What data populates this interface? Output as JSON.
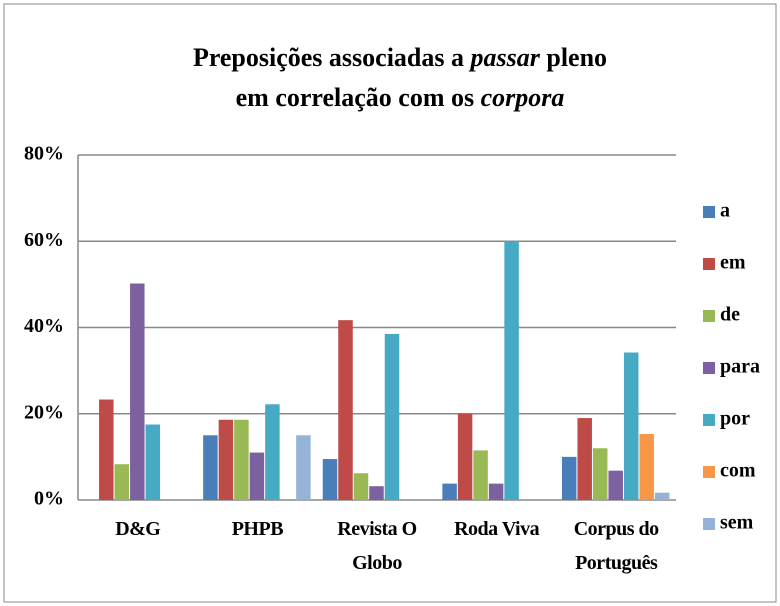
{
  "chart_data": {
    "type": "bar",
    "title": [
      [
        "Preposições associadas a",
        "passar",
        "pleno"
      ],
      [
        "em correlação com os",
        "corpora"
      ]
    ],
    "categories": [
      "D&G",
      "PHPB",
      "Revista O Globo",
      "Roda Viva",
      "Corpus do Português"
    ],
    "series": [
      {
        "name": "a",
        "color": "#4a7ebb",
        "values": [
          0,
          15,
          9.5,
          3.8,
          10
        ]
      },
      {
        "name": "em",
        "color": "#be4b48",
        "values": [
          23.3,
          18.6,
          41.7,
          20,
          19
        ]
      },
      {
        "name": "de",
        "color": "#98b954",
        "values": [
          8.3,
          18.6,
          6.2,
          11.5,
          12
        ]
      },
      {
        "name": "para",
        "color": "#7d60a0",
        "values": [
          50.2,
          11,
          3.2,
          3.8,
          6.8
        ]
      },
      {
        "name": "por",
        "color": "#46aac5",
        "values": [
          17.5,
          22.2,
          38.5,
          60,
          34.2
        ]
      },
      {
        "name": "com",
        "color": "#f79646",
        "values": [
          0,
          0,
          0,
          0,
          15.3
        ]
      },
      {
        "name": "sem",
        "color": "#95b3d7",
        "values": [
          0,
          15,
          0,
          0,
          1.7
        ]
      }
    ],
    "ylim": [
      0,
      80
    ],
    "yticks": [
      {
        "value": 0,
        "label": "0%"
      },
      {
        "value": 20,
        "label": "20%"
      },
      {
        "value": 40,
        "label": "40%"
      },
      {
        "value": 60,
        "label": "60%"
      },
      {
        "value": 80,
        "label": "80%"
      }
    ],
    "grid": true,
    "legend": "right"
  }
}
